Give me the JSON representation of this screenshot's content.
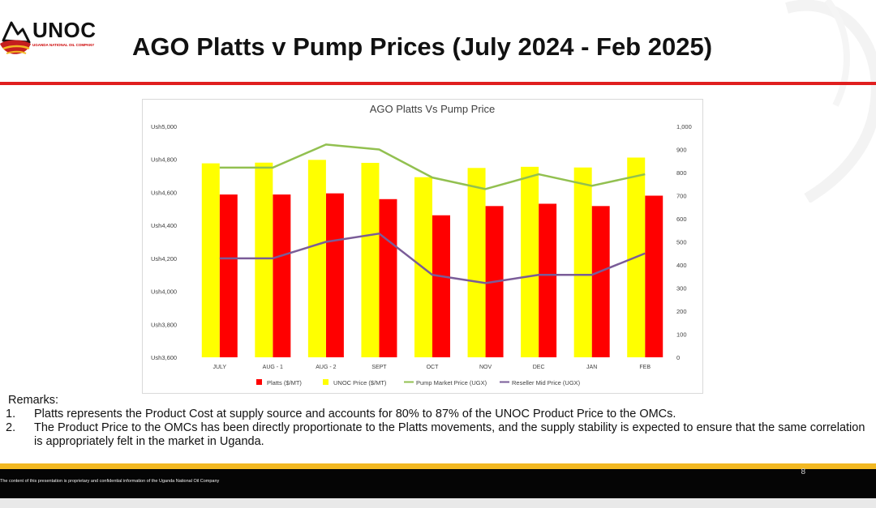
{
  "header": {
    "logo_text": "UNOC",
    "logo_subtext": "UGANDA NATIONAL OIL COMPANY",
    "title": "AGO Platts v Pump Prices (July 2024 - Feb 2025)"
  },
  "colors": {
    "accent_red": "#e01e1e",
    "platts": "#ff0000",
    "unoc_price": "#ffff00",
    "pump_market": "#92c050",
    "reseller_mid": "#7a5c98",
    "footer_gold": "#f2b822"
  },
  "chart_data": {
    "type": "bar",
    "title": "AGO Platts Vs Pump Price",
    "categories": [
      "JULY",
      "AUG - 1",
      "AUG - 2",
      "SEPT",
      "OCT",
      "NOV",
      "DEC",
      "JAN",
      "FEB"
    ],
    "series": [
      {
        "name": "Platts ($/MT)",
        "type": "bar",
        "axis": "right",
        "color": "#ff0000",
        "values": [
          705,
          705,
          710,
          685,
          615,
          655,
          665,
          655,
          700
        ]
      },
      {
        "name": "UNOC Price ($/MT)",
        "type": "bar",
        "axis": "right",
        "color": "#ffff00",
        "values": [
          840,
          843,
          855,
          842,
          780,
          820,
          825,
          822,
          865
        ]
      },
      {
        "name": "Pump Market Price (UGX)",
        "type": "line",
        "axis": "left",
        "color": "#92c050",
        "values": [
          4750,
          4750,
          4890,
          4860,
          4690,
          4620,
          4710,
          4640,
          4710
        ]
      },
      {
        "name": "Reseller Mid Price (UGX)",
        "type": "line",
        "axis": "left",
        "color": "#7a5c98",
        "values": [
          4200,
          4200,
          4300,
          4350,
          4100,
          4050,
          4100,
          4100,
          4230
        ]
      }
    ],
    "left_axis": {
      "ticks": [
        "Ush5,000",
        "Ush4,800",
        "Ush4,600",
        "Ush4,400",
        "Ush4,200",
        "Ush4,000",
        "Ush3,800",
        "Ush3,600"
      ],
      "ylim": [
        3600,
        5000
      ]
    },
    "right_axis": {
      "ticks": [
        "1,000",
        "900",
        "800",
        "700",
        "600",
        "500",
        "400",
        "300",
        "200",
        "100",
        "0"
      ],
      "ylim": [
        0,
        1000
      ]
    },
    "grid": false,
    "legend_position": "bottom"
  },
  "remarks": {
    "heading": "Remarks:",
    "items": [
      {
        "num": "1.",
        "text": "Platts represents the Product Cost at supply source and accounts for 80% to 87% of the UNOC Product Price to the OMCs."
      },
      {
        "num": "2.",
        "text": "The Product Price to the OMCs has been directly proportionate to the Platts movements, and the supply stability is expected to ensure that the same correlation is appropriately felt in the market in Uganda."
      }
    ]
  },
  "footer": {
    "disclaimer": "The content of this presentation is proprietary and confidential information of the Uganda National Oil Company",
    "page_number": "8"
  }
}
